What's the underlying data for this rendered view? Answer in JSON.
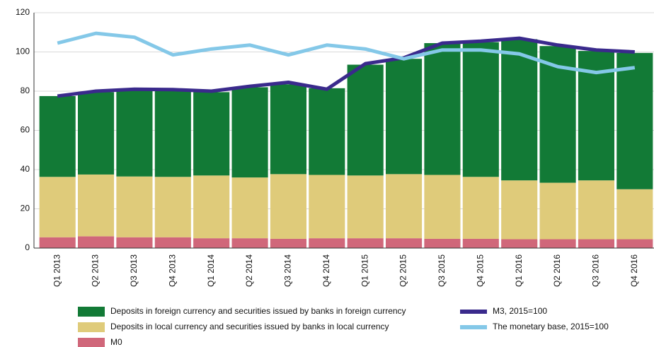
{
  "chart_data": {
    "type": "bar-line",
    "categories": [
      "Q1 2013",
      "Q2 2013",
      "Q3 2013",
      "Q4 2013",
      "Q1 2014",
      "Q2 2014",
      "Q3 2014",
      "Q4 2014",
      "Q1 2015",
      "Q2 2015",
      "Q3 2015",
      "Q4 2015",
      "Q1 2016",
      "Q2 2016",
      "Q3 2016",
      "Q4 2016"
    ],
    "series": [
      {
        "name": "M0",
        "color": "#d0677a",
        "kind": "bar",
        "values": [
          5.5,
          6,
          5.5,
          5.5,
          5,
          5,
          4.7,
          5,
          5,
          5,
          4.7,
          4.7,
          4.5,
          4.5,
          4.5,
          4.5
        ]
      },
      {
        "name": "Deposits in local currency and securities issued by banks in local currency",
        "color": "#dfcb7a",
        "kind": "bar",
        "values": [
          30.8,
          31.5,
          31,
          30.8,
          32,
          31,
          33,
          32.3,
          32,
          32.7,
          32.6,
          31.6,
          30,
          28.8,
          30,
          25.5
        ]
      },
      {
        "name": "Deposits in foreign currency and securities issued by banks in foreign currency",
        "color": "#127a36",
        "kind": "bar",
        "values": [
          41.2,
          42,
          44,
          44,
          42.5,
          46,
          45.8,
          44.2,
          56.5,
          58.8,
          67.2,
          68.7,
          72,
          69.7,
          66,
          69.5
        ]
      },
      {
        "name": "M3, 2015=100",
        "color": "#3a2a8c",
        "kind": "line",
        "values": [
          77.5,
          80,
          81,
          80.8,
          80,
          82.5,
          84.5,
          81,
          94,
          97,
          104.5,
          105.5,
          107,
          103.5,
          101,
          100
        ]
      },
      {
        "name": "The monetary base, 2015=100",
        "color": "#84c8e8",
        "kind": "line",
        "values": [
          104.5,
          109.5,
          107.5,
          98.5,
          101.5,
          103.5,
          98.5,
          103.5,
          101.5,
          96.5,
          101,
          101,
          99,
          92.5,
          89.5,
          92
        ]
      }
    ],
    "ylim": [
      0,
      120
    ],
    "yticks": [
      0,
      20,
      40,
      60,
      80,
      100,
      120
    ],
    "grid": true
  }
}
